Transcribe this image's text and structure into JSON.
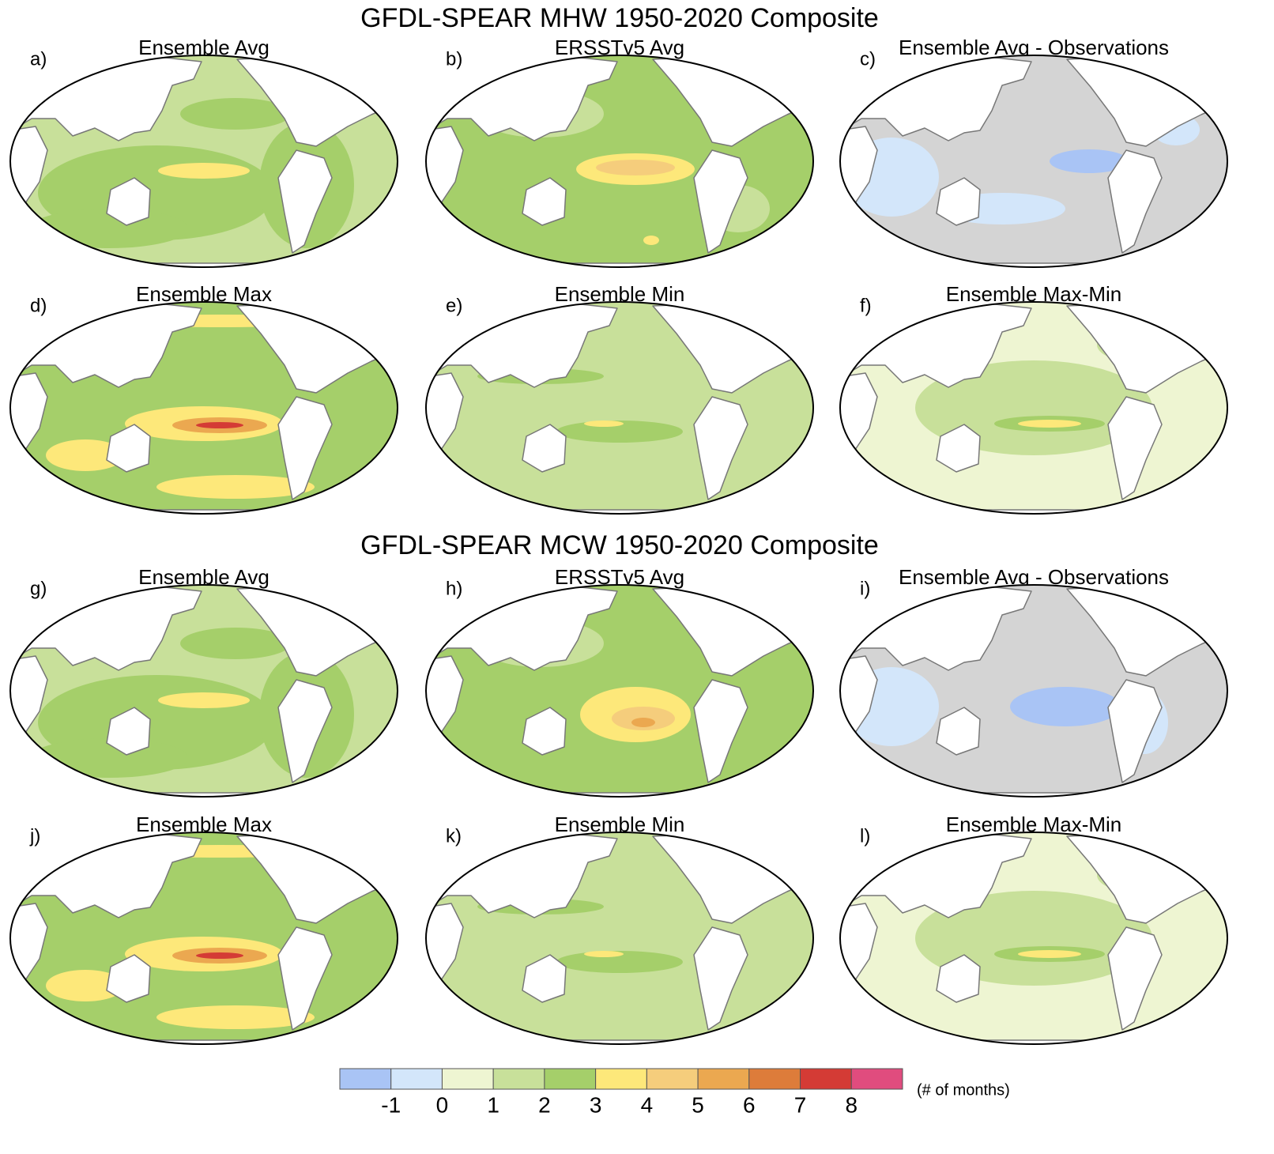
{
  "figure": {
    "sections": [
      {
        "title": "GFDL-SPEAR MHW 1950-2020 Composite",
        "panels": [
          {
            "label": "a)",
            "title": "Ensemble Avg"
          },
          {
            "label": "b)",
            "title": "ERSSTv5 Avg"
          },
          {
            "label": "c)",
            "title": "Ensemble Avg - Observations"
          },
          {
            "label": "d)",
            "title": "Ensemble Max"
          },
          {
            "label": "e)",
            "title": "Ensemble Min"
          },
          {
            "label": "f)",
            "title": "Ensemble Max-Min"
          }
        ]
      },
      {
        "title": "GFDL-SPEAR MCW 1950-2020 Composite",
        "panels": [
          {
            "label": "g)",
            "title": "Ensemble Avg"
          },
          {
            "label": "h)",
            "title": "ERSSTv5 Avg"
          },
          {
            "label": "i)",
            "title": "Ensemble Avg - Observations"
          },
          {
            "label": "j)",
            "title": "Ensemble Max"
          },
          {
            "label": "k)",
            "title": "Ensemble Min"
          },
          {
            "label": "l)",
            "title": "Ensemble Max-Min"
          }
        ]
      }
    ],
    "colorbar": {
      "ticks": [
        -1,
        0,
        1,
        2,
        3,
        4,
        5,
        6,
        7,
        8
      ],
      "colors": [
        "#a9c4f5",
        "#d3e6fa",
        "#eef5d2",
        "#c8e09a",
        "#a5cf6a",
        "#fde87a",
        "#f5cd7c",
        "#eba850",
        "#dd7c3a",
        "#d43b35",
        "#e04c7e"
      ],
      "unit": "(# of months)"
    }
  }
}
